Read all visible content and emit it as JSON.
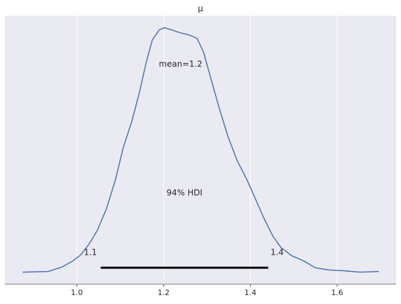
{
  "chart_data": {
    "type": "line",
    "title": "μ",
    "x": [
      0.875,
      0.934,
      0.965,
      0.989,
      1.009,
      1.028,
      1.047,
      1.068,
      1.089,
      1.107,
      1.126,
      1.144,
      1.16,
      1.174,
      1.19,
      1.202,
      1.218,
      1.237,
      1.258,
      1.277,
      1.292,
      1.308,
      1.329,
      1.349,
      1.37,
      1.392,
      1.411,
      1.432,
      1.452,
      1.471,
      1.495,
      1.522,
      1.55,
      1.582,
      1.614,
      1.653,
      1.696
    ],
    "values": [
      0,
      0.01,
      0.07,
      0.15,
      0.24,
      0.39,
      0.58,
      0.88,
      1.29,
      1.74,
      2.09,
      2.5,
      2.93,
      3.24,
      3.38,
      3.41,
      3.38,
      3.34,
      3.31,
      3.26,
      3.07,
      2.72,
      2.27,
      1.88,
      1.55,
      1.29,
      1.03,
      0.74,
      0.5,
      0.34,
      0.23,
      0.16,
      0.06,
      0.03,
      0.02,
      0,
      0.01
    ],
    "color": "#4c72b0",
    "xlim": [
      0.834,
      1.736
    ],
    "ylim": [
      -0.167,
      3.576
    ],
    "xticks": [
      {
        "value": 1,
        "label": "1.0"
      },
      1.2,
      1.4,
      1.6
    ],
    "grid": true,
    "mean_label": "mean=1.2",
    "hdi": {
      "label": "94% HDI",
      "values": [
        1.055,
        1.441
      ],
      "value_labels": [
        "1.1",
        "1.4"
      ],
      "color": "#000000"
    }
  }
}
